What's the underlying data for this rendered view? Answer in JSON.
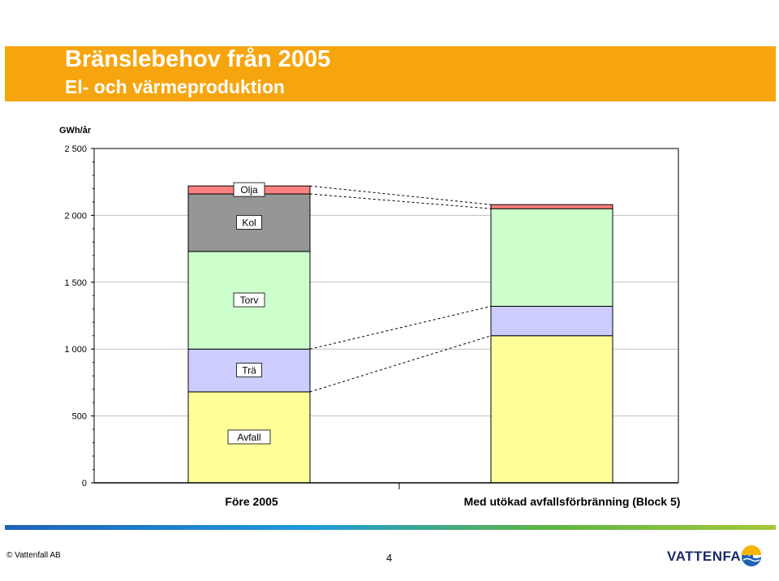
{
  "header": {
    "title": "Bränslebehov från 2005",
    "subtitle": "El- och värmeproduktion"
  },
  "footer": {
    "copyright": "© Vattenfall AB",
    "page_number": "4",
    "brand": "VATTENFALL",
    "brand_logo_icon": "vattenfall-sun-wave-icon"
  },
  "chart_data": {
    "type": "bar",
    "stacked": true,
    "ylabel": "GWh/år",
    "ylim": [
      0,
      2500
    ],
    "yticks": [
      0,
      500,
      1000,
      1500,
      2000,
      2500
    ],
    "ytick_labels": [
      "0",
      "500",
      "1 000",
      "1 500",
      "2 000",
      "2 500"
    ],
    "grid": true,
    "categories": [
      "Före 2005",
      "Med utökad avfallsförbränning (Block 5)"
    ],
    "series": [
      {
        "name": "Avfall",
        "color": "#ffff99",
        "values": [
          680,
          1100
        ]
      },
      {
        "name": "Trä",
        "color": "#ccccff",
        "values": [
          320,
          220
        ]
      },
      {
        "name": "Torv",
        "color": "#ccffcc",
        "values": [
          730,
          730
        ]
      },
      {
        "name": "Kol",
        "color": "#969696",
        "values": [
          430,
          0
        ]
      },
      {
        "name": "Olja",
        "color": "#ff8080",
        "values": [
          60,
          30
        ]
      }
    ],
    "series_labels_on": "Före 2005",
    "connector_lines": "dashed"
  }
}
